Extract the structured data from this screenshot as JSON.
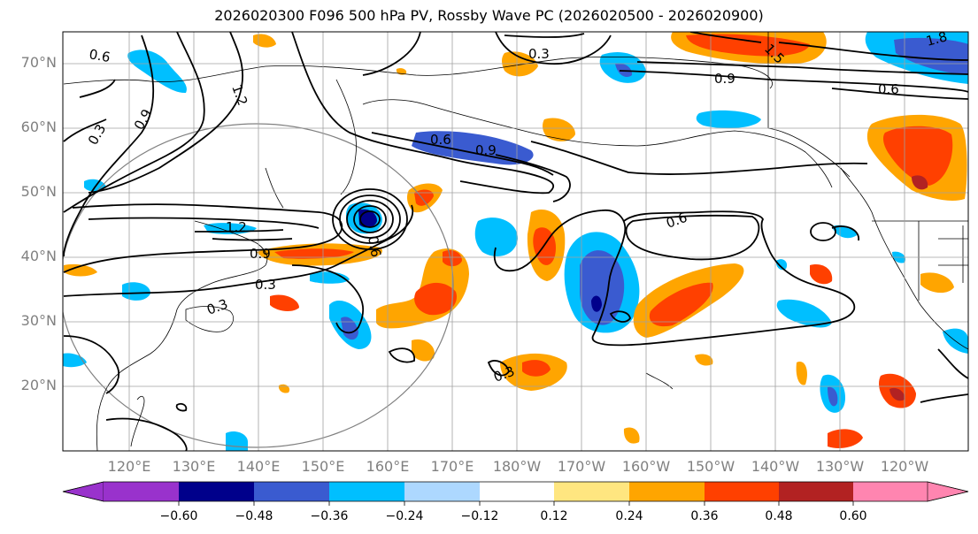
{
  "title": "2026020300 F096 500 hPa PV, Rossby Wave PC (2026020500 - 2026020900)",
  "lat_labels": [
    "70°N",
    "60°N",
    "50°N",
    "40°N",
    "30°N",
    "20°N"
  ],
  "lon_labels": [
    "120°E",
    "130°E",
    "140°E",
    "150°E",
    "160°E",
    "170°E",
    "180°W",
    "170°W",
    "160°W",
    "150°W",
    "140°W",
    "130°W",
    "120°W"
  ],
  "contour_labels": [
    "0.6",
    "0.3",
    "0.9",
    "1.2",
    "0.3",
    "0.6",
    "0.9",
    "0.9",
    "0.6",
    "0.6",
    "1.5",
    "1.8",
    "0.9",
    "0.3",
    "0.3",
    "0.3",
    "0.6",
    "1.2"
  ],
  "colorbar": {
    "ticks": [
      "−0.60",
      "−0.48",
      "−0.36",
      "−0.24",
      "−0.12",
      "0.12",
      "0.24",
      "0.36",
      "0.48",
      "0.60"
    ],
    "bins": [
      {
        "range": "< -0.60",
        "color": "#9932CC"
      },
      {
        "range": "-0.60 to -0.48",
        "color": "#00008B"
      },
      {
        "range": "-0.48 to -0.36",
        "color": "#3A5BD0"
      },
      {
        "range": "-0.36 to -0.24",
        "color": "#00BFFF"
      },
      {
        "range": "-0.24 to -0.12",
        "color": "#ADD8FF"
      },
      {
        "range": "-0.12 to 0.12",
        "color": "#FFFFFF"
      },
      {
        "range": "0.12 to 0.24",
        "color": "#FFE680"
      },
      {
        "range": "0.24 to 0.36",
        "color": "#FFA500"
      },
      {
        "range": "0.36 to 0.48",
        "color": "#FF4000"
      },
      {
        "range": "0.48 to 0.60",
        "color": "#B22222"
      },
      {
        "range": "> 0.60",
        "color": "#FF85B0"
      }
    ]
  }
}
